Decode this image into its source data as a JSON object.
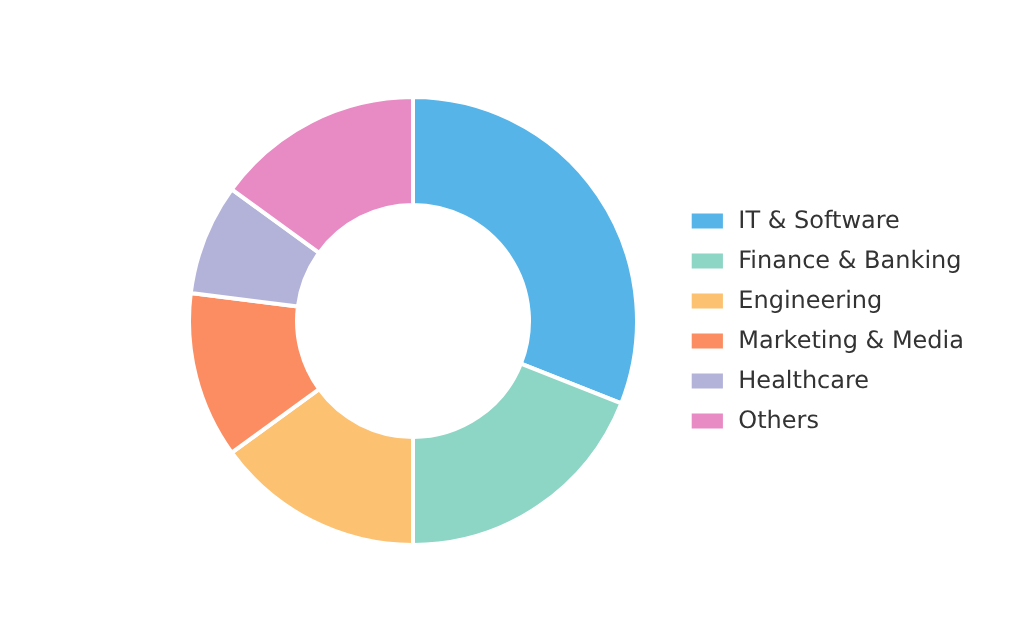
{
  "chart_data": {
    "type": "donut",
    "categories": [
      "IT & Software",
      "Finance & Banking",
      "Engineering",
      "Marketing & Media",
      "Healthcare",
      "Others"
    ],
    "values": [
      31,
      19,
      15,
      12,
      8,
      15
    ],
    "colors": [
      "#56b4e9",
      "#8dd5c5",
      "#fcc171",
      "#fc8d62",
      "#b3b3da",
      "#e88ac4"
    ],
    "legend": "right"
  }
}
